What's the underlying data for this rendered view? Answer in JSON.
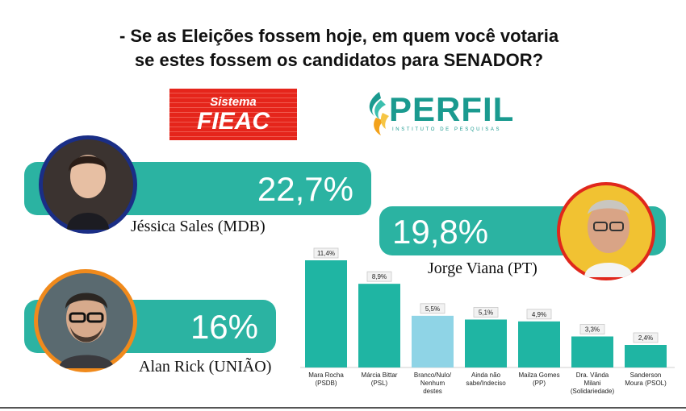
{
  "question": {
    "line1": "- Se as Eleições fossem hoje, em quem você votaria",
    "line2": "se estes fossem os candidatos para SENADOR?"
  },
  "logos": {
    "fieac": {
      "line1": "Sistema",
      "line2": "FIEAC"
    },
    "perfil": {
      "name": "PERFIL",
      "tagline": "INSTITUTO DE PESQUISAS"
    }
  },
  "candidates": [
    {
      "name": "Jéssica Sales (MDB)",
      "percent": "22,7%",
      "value": 22.7
    },
    {
      "name": "Jorge Viana (PT)",
      "percent": "19,8%",
      "value": 19.8
    },
    {
      "name": "Alan Rick (UNIÃO)",
      "percent": "16%",
      "value": 16
    }
  ],
  "colors": {
    "teal": "#2bb3a2",
    "bar": "#1fb5a3",
    "bar_highlight": "#8fd4e6",
    "fieac_red": "#e5251b"
  },
  "chart_data": {
    "type": "bar",
    "categories": [
      "Mara Rocha (PSDB)",
      "Márcia Bittar (PSL)",
      "Branco/Nulo/ Nenhum destes",
      "Ainda não sabe/Indeciso",
      "Mailza Gomes (PP)",
      "Dra. Vânda Milani (Solidariedade)",
      "Sanderson Moura (PSOL)"
    ],
    "category_lines": [
      [
        "Mara Rocha",
        "(PSDB)"
      ],
      [
        "Márcia Bittar",
        "(PSL)"
      ],
      [
        "Branco/Nulo/",
        "Nenhum",
        "destes"
      ],
      [
        "Ainda não",
        "sabe/Indeciso"
      ],
      [
        "Mailza Gomes",
        "(PP)"
      ],
      [
        "Dra. Vânda",
        "Milani",
        "(Solidariedade)"
      ],
      [
        "Sanderson",
        "Moura (PSOL)"
      ]
    ],
    "values": [
      11.4,
      8.9,
      5.5,
      5.1,
      4.9,
      3.3,
      2.4
    ],
    "data_labels": [
      "11,4%",
      "8,9%",
      "5,5%",
      "5,1%",
      "4,9%",
      "3,3%",
      "2,4%"
    ],
    "highlight_index": 2,
    "ylim": [
      0,
      12
    ],
    "title": "",
    "xlabel": "",
    "ylabel": "",
    "grid": false,
    "legend": "none"
  }
}
